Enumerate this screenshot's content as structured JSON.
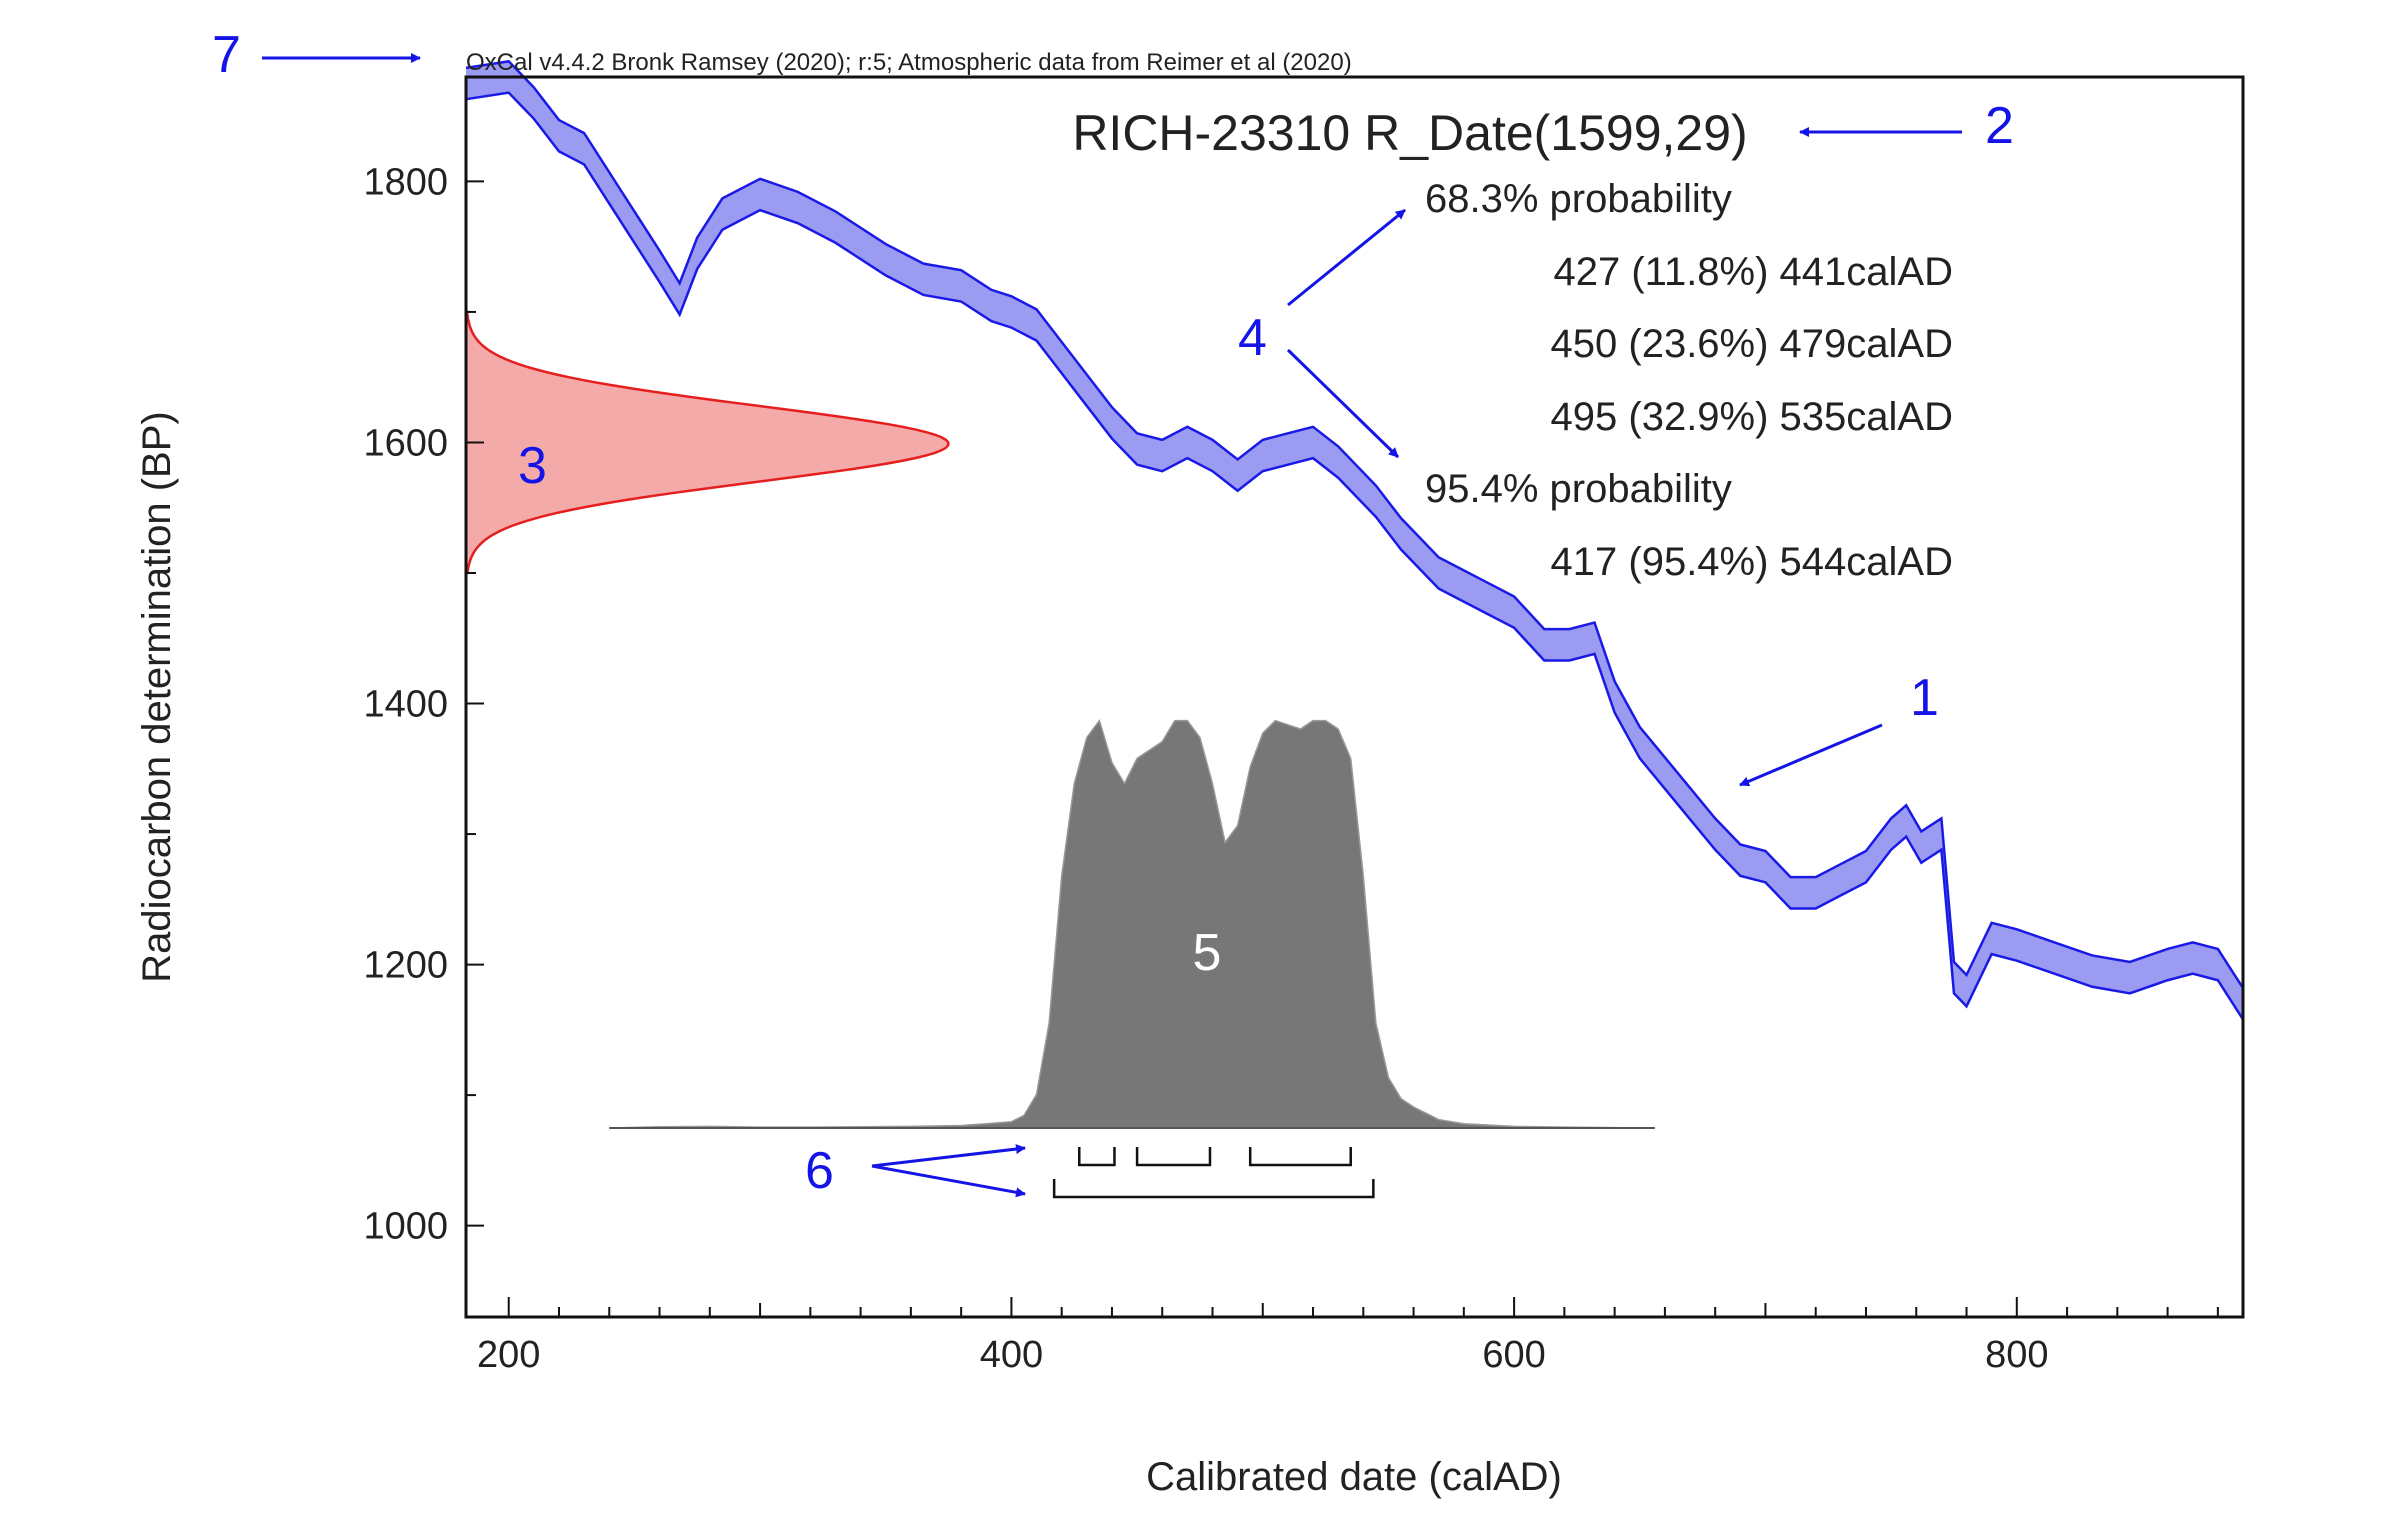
{
  "chart_data": {
    "type": "area",
    "attribution": "OxCal v4.4.2 Bronk Ramsey (2020); r:5; Atmospheric data from Reimer et al (2020)",
    "title": "RICH-23310 R_Date(1599,29)",
    "xlabel": "Calibrated date (calAD)",
    "ylabel": "Radiocarbon determination (BP)",
    "xlim": [
      183,
      890
    ],
    "ylim": [
      930,
      1880
    ],
    "x_ticks": [
      200,
      400,
      600,
      800
    ],
    "y_ticks": [
      1000,
      1200,
      1400,
      1600,
      1800
    ],
    "grid": false,
    "colors": {
      "curve_fill": "#9b9bf2",
      "curve_edge": "#1a1ae6",
      "rdate_fill": "#f5aaaa",
      "rdate_edge": "#e61e1e",
      "posterior_fill": "#777777",
      "annotation": "#1414e6"
    },
    "calibration_curve": {
      "x": [
        183,
        200,
        210,
        220,
        230,
        245,
        260,
        268,
        275,
        285,
        300,
        315,
        330,
        350,
        365,
        380,
        392,
        400,
        410,
        420,
        430,
        440,
        450,
        460,
        470,
        480,
        490,
        500,
        510,
        520,
        530,
        545,
        555,
        570,
        590,
        600,
        612,
        622,
        632,
        640,
        650,
        665,
        680,
        690,
        700,
        710,
        720,
        730,
        740,
        750,
        756,
        762,
        770,
        775,
        780,
        790,
        800,
        815,
        830,
        845,
        860,
        870,
        880,
        890
      ],
      "mean": [
        1875,
        1880,
        1860,
        1835,
        1825,
        1780,
        1735,
        1710,
        1745,
        1775,
        1790,
        1780,
        1765,
        1740,
        1725,
        1720,
        1705,
        1700,
        1690,
        1665,
        1640,
        1615,
        1595,
        1590,
        1600,
        1590,
        1575,
        1590,
        1595,
        1600,
        1585,
        1555,
        1530,
        1500,
        1480,
        1470,
        1445,
        1445,
        1450,
        1405,
        1370,
        1335,
        1300,
        1280,
        1275,
        1255,
        1255,
        1265,
        1275,
        1300,
        1310,
        1290,
        1300,
        1190,
        1180,
        1220,
        1215,
        1205,
        1195,
        1190,
        1200,
        1205,
        1200,
        1170
      ],
      "halfwidth": [
        12,
        12,
        12,
        12,
        12,
        12,
        12,
        12,
        12,
        12,
        12,
        12,
        12,
        12,
        12,
        12,
        12,
        12,
        12,
        12,
        12,
        12,
        12,
        12,
        12,
        12,
        12,
        12,
        12,
        12,
        12,
        12,
        12,
        12,
        12,
        12,
        12,
        12,
        12,
        12,
        12,
        12,
        12,
        12,
        12,
        12,
        12,
        12,
        12,
        12,
        12,
        12,
        12,
        12,
        12,
        12,
        12,
        12,
        12,
        12,
        12,
        12,
        12,
        12
      ]
    },
    "radiocarbon_date": {
      "mean": 1599,
      "sd": 29,
      "range": [
        1500,
        1700
      ]
    },
    "posterior": {
      "x": [
        240,
        260,
        280,
        300,
        320,
        340,
        360,
        380,
        390,
        400,
        405,
        410,
        415,
        420,
        425,
        430,
        435,
        440,
        445,
        450,
        455,
        460,
        465,
        470,
        475,
        480,
        485,
        490,
        495,
        500,
        505,
        510,
        515,
        520,
        525,
        530,
        535,
        540,
        545,
        550,
        555,
        560,
        570,
        580,
        600,
        620,
        640,
        656
      ],
      "density": [
        0,
        0.003,
        0.004,
        0.002,
        0.002,
        0.003,
        0.004,
        0.006,
        0.01,
        0.015,
        0.03,
        0.08,
        0.25,
        0.6,
        0.82,
        0.93,
        0.97,
        0.87,
        0.82,
        0.88,
        0.9,
        0.92,
        0.97,
        0.97,
        0.93,
        0.82,
        0.68,
        0.72,
        0.86,
        0.94,
        0.97,
        0.96,
        0.95,
        0.97,
        0.97,
        0.95,
        0.88,
        0.6,
        0.25,
        0.12,
        0.07,
        0.05,
        0.02,
        0.01,
        0.004,
        0.002,
        0.001,
        0
      ]
    },
    "ranges": {
      "p68": {
        "label": "68.3% probability",
        "intervals": [
          {
            "from": 427,
            "to": 441,
            "text": "427 (11.8%) 441calAD"
          },
          {
            "from": 450,
            "to": 479,
            "text": "450 (23.6%) 479calAD"
          },
          {
            "from": 495,
            "to": 535,
            "text": "495 (32.9%) 535calAD"
          }
        ]
      },
      "p95": {
        "label": "95.4% probability",
        "intervals": [
          {
            "from": 417,
            "to": 544,
            "text": "417 (95.4%) 544calAD"
          }
        ]
      }
    },
    "annotations": {
      "n1": "1",
      "n2": "2",
      "n3": "3",
      "n4": "4",
      "n5": "5",
      "n6": "6",
      "n7": "7"
    }
  }
}
